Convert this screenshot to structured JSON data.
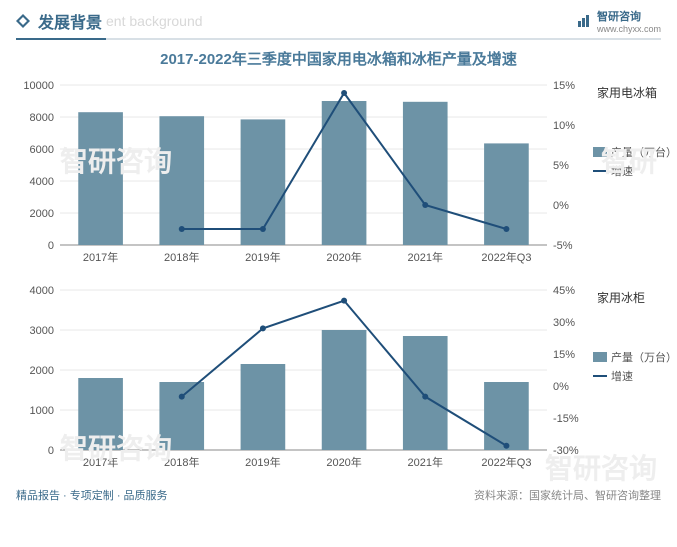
{
  "header": {
    "title_cn": "发展背景",
    "title_en": "ent background",
    "brand_label": "智研咨询",
    "brand_url": "www.chyxx.com"
  },
  "chart_title": "2017-2022年三季度中国家用电冰箱和冰柜产量及增速",
  "categories": [
    "2017年",
    "2018年",
    "2019年",
    "2020年",
    "2021年",
    "2022年Q3"
  ],
  "chart1": {
    "subtitle": "家用电冰箱",
    "type": "bar+line",
    "bar_values": [
      8300,
      8050,
      7850,
      9000,
      8950,
      6350
    ],
    "line_values": [
      null,
      -3,
      -3,
      14,
      0,
      -3
    ],
    "y_left": {
      "min": 0,
      "max": 10000,
      "step": 2000
    },
    "y_right": {
      "min": -5,
      "max": 15,
      "step": 5,
      "suffix": "%"
    },
    "legend_bar": "产量（万台）",
    "legend_line": "增速",
    "bar_color": "#6d93a6",
    "line_color": "#1f4e79",
    "axis_color": "#888",
    "grid_color": "#d0d0d0"
  },
  "chart2": {
    "subtitle": "家用冰柜",
    "type": "bar+line",
    "bar_values": [
      1800,
      1700,
      2150,
      3000,
      2850,
      1700
    ],
    "line_values": [
      null,
      -5,
      27,
      40,
      -5,
      -28
    ],
    "y_left": {
      "min": 0,
      "max": 4000,
      "step": 1000
    },
    "y_right": {
      "min": -30,
      "max": 45,
      "step": 15,
      "suffix": "%"
    },
    "legend_bar": "产量（万台）",
    "legend_line": "增速",
    "bar_color": "#6d93a6",
    "line_color": "#1f4e79",
    "axis_color": "#888",
    "grid_color": "#d0d0d0"
  },
  "footer": {
    "left": "精品报告 · 专项定制 · 品质服务",
    "right": "资料来源：国家统计局、智研咨询整理"
  },
  "colors": {
    "title_color": "#4a7a9a",
    "header_color": "#3a6a8a"
  }
}
